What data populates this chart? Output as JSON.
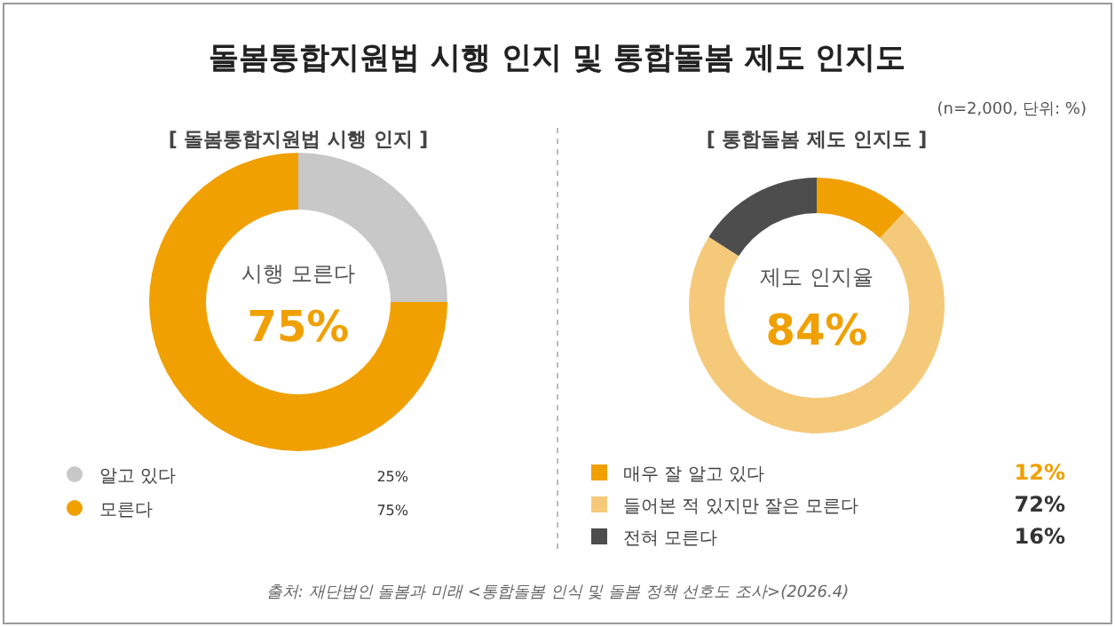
{
  "chart_data": [
    {
      "type": "donut",
      "title": "돌봄통합지원법 시행 인지 및 통합돌봄 제도 인지도",
      "subtitle": "[ 돌봄통합지원법 시행 인지 ]",
      "categories": [
        "알고 있다",
        "모른다"
      ],
      "values": [
        25,
        75
      ],
      "colors": [
        "#c8c8c8",
        "#f0a000"
      ],
      "value_labels": [
        "25%",
        "75%"
      ],
      "legend": "bottom",
      "marker": "circle",
      "annotations": [
        "시행 모른다",
        "75%"
      ]
    },
    {
      "type": "donut",
      "subtitle": "[ 통합돌봄 제도 인지도 ]",
      "categories": [
        "매우 잘 알고 있다",
        "들어본 적 있지만 잘은 모른다",
        "전혀 모른다"
      ],
      "values": [
        12,
        72,
        16
      ],
      "colors": [
        "#f0a000",
        "#f5c97a",
        "#4d4d4d"
      ],
      "value_labels": [
        "12%",
        "72%",
        "16%"
      ],
      "legend": "bottom",
      "marker": "square",
      "annotations": [
        "제도 인지율",
        "84%",
        "(n=2,000, 단위: %)",
        "출처: 재단법인 돌봄과 미래 <통합돌봄 인식 및 돌봄 정책 선호도 조사>(2026.4)"
      ]
    }
  ]
}
